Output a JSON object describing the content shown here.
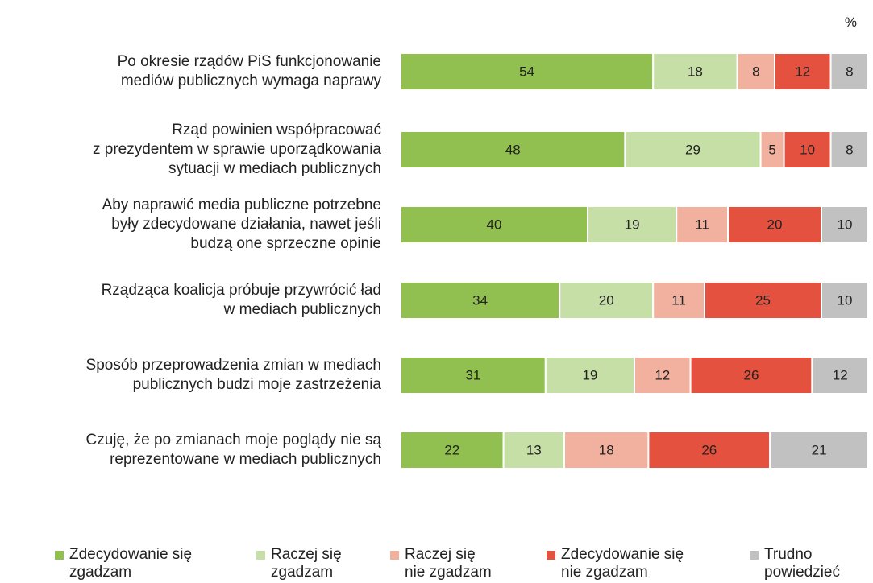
{
  "chart_data": {
    "type": "stacked-bar-horizontal",
    "unit": "%",
    "categories": [
      "Po okresie rządów PiS funkcjonowanie\nmediów publicznych wymaga naprawy",
      "Rząd powinien współpracować\nz prezydentem w sprawie uporządkowania\nsytuacji w mediach publicznych",
      "Aby naprawić media publiczne potrzebne\nbyły zdecydowane działania, nawet jeśli\nbudzą one sprzeczne opinie",
      "Rządząca koalicja próbuje przywrócić ład\nw mediach publicznych",
      "Sposób przeprowadzenia zmian w mediach\npublicznych budzi moje zastrzeżenia",
      "Czuję, że po zmianach moje poglądy nie są\nreprezentowane w mediach publicznych"
    ],
    "xlim": [
      0,
      100
    ],
    "legend": "bottom",
    "series": [
      {
        "name": "Zdecydowanie się\nzgadzam",
        "color": "#92c050",
        "values": [
          54,
          48,
          40,
          34,
          31,
          22
        ]
      },
      {
        "name": "Raczej się\nzgadzam",
        "color": "#c6dfa6",
        "values": [
          18,
          29,
          19,
          20,
          19,
          13
        ]
      },
      {
        "name": "Raczej się\nnie zgadzam",
        "color": "#f2b19f",
        "values": [
          8,
          5,
          11,
          11,
          12,
          18
        ]
      },
      {
        "name": "Zdecydowanie się\nnie zgadzam",
        "color": "#e5513f",
        "values": [
          12,
          10,
          20,
          25,
          26,
          26
        ]
      },
      {
        "name": "Trudno\npowiedzieć",
        "color": "#c1c1c1",
        "values": [
          8,
          8,
          10,
          10,
          12,
          21
        ]
      }
    ]
  }
}
